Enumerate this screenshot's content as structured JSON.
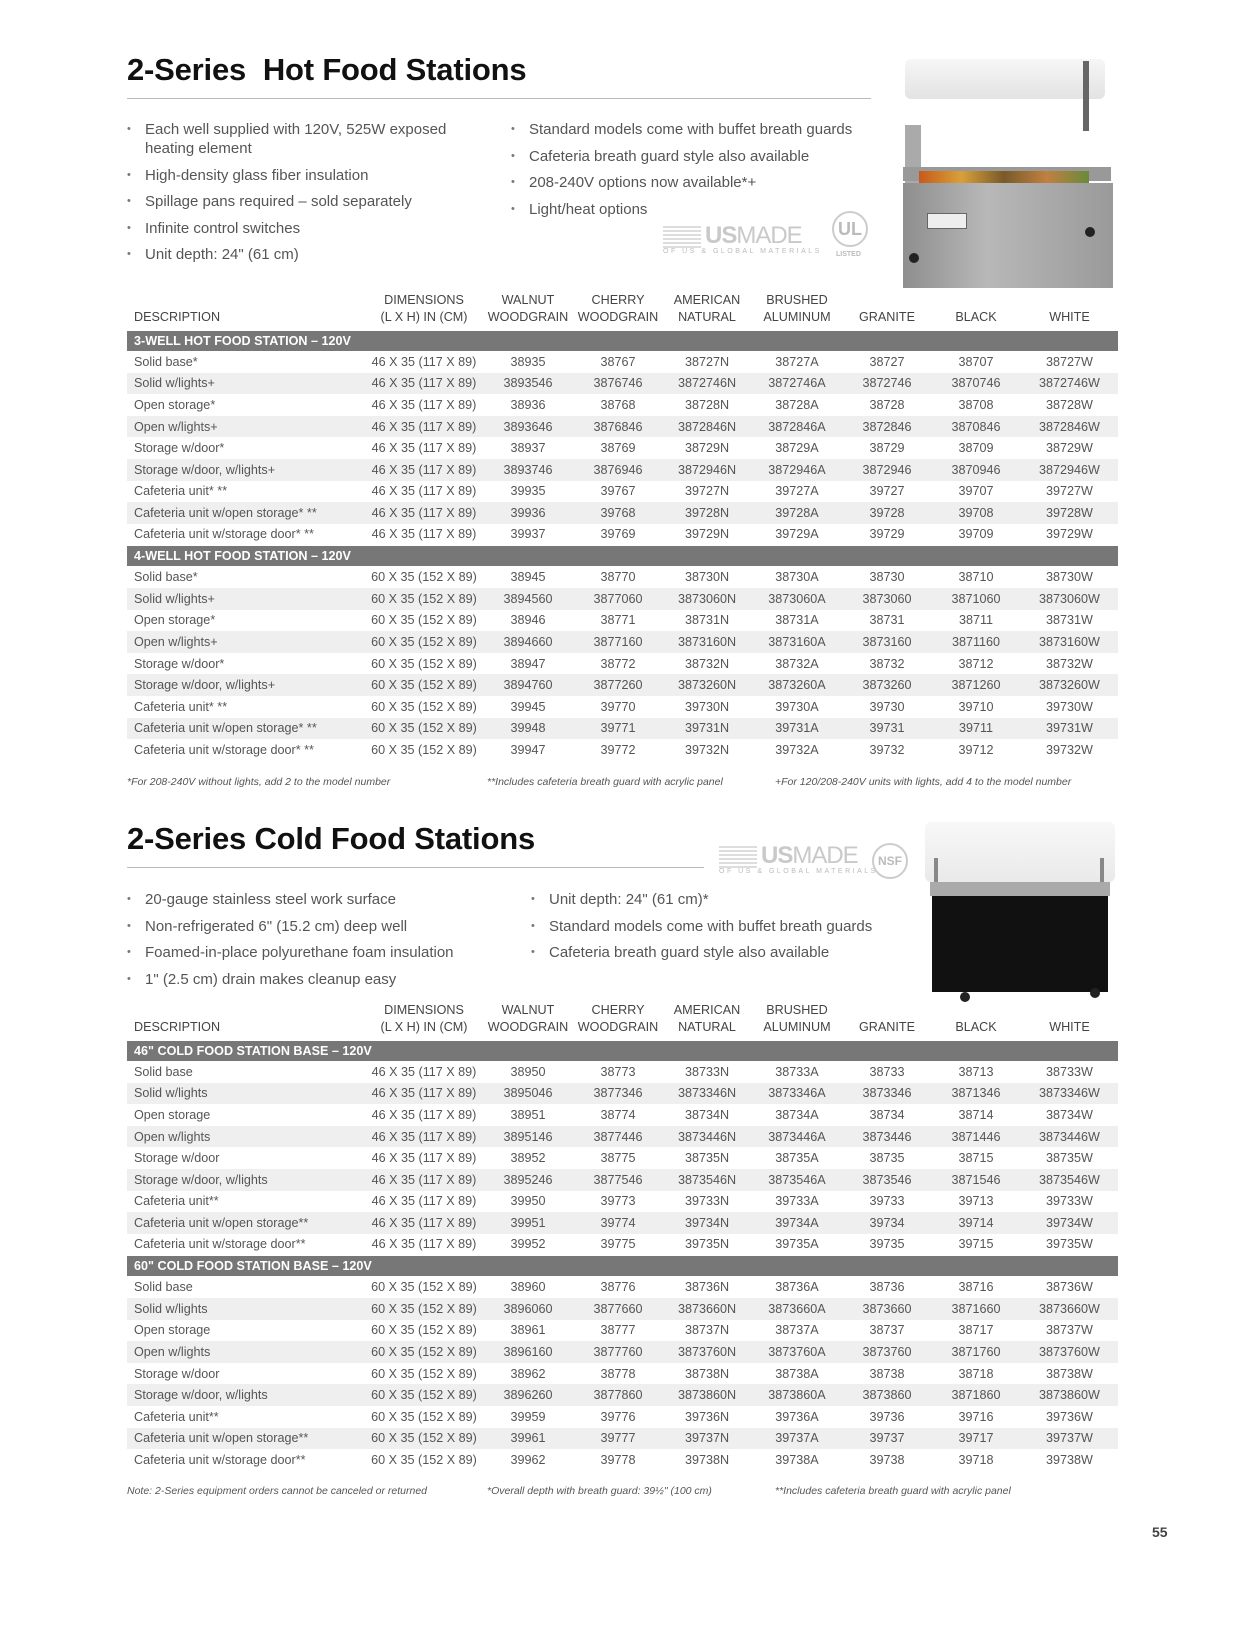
{
  "hot": {
    "title": "2-Series  Hot Food Stations",
    "bullets_left": [
      "Each well supplied with 120V, 525W exposed heating element",
      "High-density glass fiber insulation",
      "Spillage pans required – sold separately",
      "Infinite control switches",
      "Unit depth: 24\" (61 cm)"
    ],
    "bullets_right": [
      "Standard models come with buffet breath guards",
      "Cafeteria breath guard style also available",
      "208-240V options now available*+",
      "Light/heat options"
    ],
    "logos": {
      "usmade": "USMADE",
      "usmade_sub": "OF US & GLOBAL MATERIALS",
      "ul": "UL",
      "ul_c": "c",
      "ul_us": "US",
      "ul_listed": "LISTED"
    },
    "columns": [
      "DESCRIPTION",
      "DIMENSIONS\n(L X H) IN (CM)",
      "WALNUT\nWOODGRAIN",
      "CHERRY\nWOODGRAIN",
      "AMERICAN\nNATURAL",
      "BRUSHED\nALUMINUM",
      "GRANITE",
      "BLACK",
      "WHITE"
    ],
    "sections": [
      {
        "title": "3-WELL HOT FOOD STATION – 120V",
        "rows": [
          [
            "Solid base*",
            "46 X 35 (117 X 89)",
            "38935",
            "38767",
            "38727N",
            "38727A",
            "38727",
            "38707",
            "38727W"
          ],
          [
            "Solid w/lights+",
            "46 X 35 (117 X 89)",
            "3893546",
            "3876746",
            "3872746N",
            "3872746A",
            "3872746",
            "3870746",
            "3872746W"
          ],
          [
            "Open storage*",
            "46 X 35 (117 X 89)",
            "38936",
            "38768",
            "38728N",
            "38728A",
            "38728",
            "38708",
            "38728W"
          ],
          [
            "Open w/lights+",
            "46 X 35 (117 X 89)",
            "3893646",
            "3876846",
            "3872846N",
            "3872846A",
            "3872846",
            "3870846",
            "3872846W"
          ],
          [
            "Storage w/door*",
            "46 X 35 (117 X 89)",
            "38937",
            "38769",
            "38729N",
            "38729A",
            "38729",
            "38709",
            "38729W"
          ],
          [
            "Storage w/door, w/lights+",
            "46 X 35 (117 X 89)",
            "3893746",
            "3876946",
            "3872946N",
            "3872946A",
            "3872946",
            "3870946",
            "3872946W"
          ],
          [
            "Cafeteria unit* **",
            "46 X 35 (117 X 89)",
            "39935",
            "39767",
            "39727N",
            "39727A",
            "39727",
            "39707",
            "39727W"
          ],
          [
            "Cafeteria unit w/open storage* **",
            "46 X 35 (117 X 89)",
            "39936",
            "39768",
            "39728N",
            "39728A",
            "39728",
            "39708",
            "39728W"
          ],
          [
            "Cafeteria unit w/storage door* **",
            "46 X 35 (117 X 89)",
            "39937",
            "39769",
            "39729N",
            "39729A",
            "39729",
            "39709",
            "39729W"
          ]
        ]
      },
      {
        "title": "4-WELL HOT FOOD STATION – 120V",
        "rows": [
          [
            "Solid base*",
            "60 X 35 (152 X 89)",
            "38945",
            "38770",
            "38730N",
            "38730A",
            "38730",
            "38710",
            "38730W"
          ],
          [
            "Solid w/lights+",
            "60 X 35 (152 X 89)",
            "3894560",
            "3877060",
            "3873060N",
            "3873060A",
            "3873060",
            "3871060",
            "3873060W"
          ],
          [
            "Open storage*",
            "60 X 35 (152 X 89)",
            "38946",
            "38771",
            "38731N",
            "38731A",
            "38731",
            "38711",
            "38731W"
          ],
          [
            "Open w/lights+",
            "60 X 35 (152 X 89)",
            "3894660",
            "3877160",
            "3873160N",
            "3873160A",
            "3873160",
            "3871160",
            "3873160W"
          ],
          [
            "Storage w/door*",
            "60 X 35 (152 X 89)",
            "38947",
            "38772",
            "38732N",
            "38732A",
            "38732",
            "38712",
            "38732W"
          ],
          [
            "Storage w/door, w/lights+",
            "60 X 35 (152 X 89)",
            "3894760",
            "3877260",
            "3873260N",
            "3873260A",
            "3873260",
            "3871260",
            "3873260W"
          ],
          [
            "Cafeteria unit* **",
            "60 X 35 (152 X 89)",
            "39945",
            "39770",
            "39730N",
            "39730A",
            "39730",
            "39710",
            "39730W"
          ],
          [
            "Cafeteria unit w/open storage* **",
            "60 X 35 (152 X 89)",
            "39948",
            "39771",
            "39731N",
            "39731A",
            "39731",
            "39711",
            "39731W"
          ],
          [
            "Cafeteria unit w/storage door* **",
            "60 X 35 (152 X 89)",
            "39947",
            "39772",
            "39732N",
            "39732A",
            "39732",
            "39712",
            "39732W"
          ]
        ]
      }
    ],
    "footnotes": [
      "*For 208-240V without lights, add 2 to the model number",
      "**Includes cafeteria breath guard with acrylic panel",
      "+For 120/208-240V units with lights, add 4 to the model number"
    ]
  },
  "cold": {
    "title": "2-Series Cold Food Stations",
    "bullets_left": [
      "20-gauge stainless steel work surface",
      "Non-refrigerated 6\" (15.2 cm) deep well",
      "Foamed-in-place polyurethane foam insulation",
      "1\" (2.5 cm) drain makes cleanup easy"
    ],
    "bullets_right": [
      "Unit depth: 24\" (61 cm)*",
      "Standard models come with buffet breath guards",
      "Cafeteria breath guard style also available"
    ],
    "logos": {
      "usmade": "USMADE",
      "usmade_sub": "OF US & GLOBAL MATERIALS",
      "nsf": "NSF"
    },
    "columns": [
      "DESCRIPTION",
      "DIMENSIONS\n(L X H) IN (CM)",
      "WALNUT\nWOODGRAIN",
      "CHERRY\nWOODGRAIN",
      "AMERICAN\nNATURAL",
      "BRUSHED\nALUMINUM",
      "GRANITE",
      "BLACK",
      "WHITE"
    ],
    "sections": [
      {
        "title": "46\" COLD FOOD STATION BASE – 120V",
        "rows": [
          [
            "Solid base",
            "46 X 35 (117 X 89)",
            "38950",
            "38773",
            "38733N",
            "38733A",
            "38733",
            "38713",
            "38733W"
          ],
          [
            "Solid w/lights",
            "46 X 35 (117 X 89)",
            "3895046",
            "3877346",
            "3873346N",
            "3873346A",
            "3873346",
            "3871346",
            "3873346W"
          ],
          [
            "Open storage",
            "46 X 35 (117 X 89)",
            "38951",
            "38774",
            "38734N",
            "38734A",
            "38734",
            "38714",
            "38734W"
          ],
          [
            "Open w/lights",
            "46 X 35 (117 X 89)",
            "3895146",
            "3877446",
            "3873446N",
            "3873446A",
            "3873446",
            "3871446",
            "3873446W"
          ],
          [
            "Storage w/door",
            "46 X 35 (117 X 89)",
            "38952",
            "38775",
            "38735N",
            "38735A",
            "38735",
            "38715",
            "38735W"
          ],
          [
            "Storage w/door, w/lights",
            "46 X 35 (117 X 89)",
            "3895246",
            "3877546",
            "3873546N",
            "3873546A",
            "3873546",
            "3871546",
            "3873546W"
          ],
          [
            "Cafeteria unit**",
            "46 X 35 (117 X 89)",
            "39950",
            "39773",
            "39733N",
            "39733A",
            "39733",
            "39713",
            "39733W"
          ],
          [
            "Cafeteria unit w/open storage**",
            "46 X 35 (117 X 89)",
            "39951",
            "39774",
            "39734N",
            "39734A",
            "39734",
            "39714",
            "39734W"
          ],
          [
            "Cafeteria unit w/storage door**",
            "46 X 35 (117 X 89)",
            "39952",
            "39775",
            "39735N",
            "39735A",
            "39735",
            "39715",
            "39735W"
          ]
        ]
      },
      {
        "title": "60\" COLD FOOD STATION BASE – 120V",
        "rows": [
          [
            "Solid base",
            "60 X 35 (152 X 89)",
            "38960",
            "38776",
            "38736N",
            "38736A",
            "38736",
            "38716",
            "38736W"
          ],
          [
            "Solid w/lights",
            "60 X 35 (152 X 89)",
            "3896060",
            "3877660",
            "3873660N",
            "3873660A",
            "3873660",
            "3871660",
            "3873660W"
          ],
          [
            "Open storage",
            "60 X 35 (152 X 89)",
            "38961",
            "38777",
            "38737N",
            "38737A",
            "38737",
            "38717",
            "38737W"
          ],
          [
            "Open w/lights",
            "60 X 35 (152 X 89)",
            "3896160",
            "3877760",
            "3873760N",
            "3873760A",
            "3873760",
            "3871760",
            "3873760W"
          ],
          [
            "Storage w/door",
            "60 X 35 (152 X 89)",
            "38962",
            "38778",
            "38738N",
            "38738A",
            "38738",
            "38718",
            "38738W"
          ],
          [
            "Storage w/door, w/lights",
            "60 X 35 (152 X 89)",
            "3896260",
            "3877860",
            "3873860N",
            "3873860A",
            "3873860",
            "3871860",
            "3873860W"
          ],
          [
            "Cafeteria unit**",
            "60 X 35 (152 X 89)",
            "39959",
            "39776",
            "39736N",
            "39736A",
            "39736",
            "39716",
            "39736W"
          ],
          [
            "Cafeteria unit w/open storage**",
            "60 X 35 (152 X 89)",
            "39961",
            "39777",
            "39737N",
            "39737A",
            "39737",
            "39717",
            "39737W"
          ],
          [
            "Cafeteria unit w/storage door**",
            "60 X 35 (152 X 89)",
            "39962",
            "39778",
            "39738N",
            "39738A",
            "39738",
            "39718",
            "39738W"
          ]
        ]
      }
    ],
    "footnotes": [
      "Note: 2-Series equipment orders cannot be canceled or returned",
      "*Overall depth with breath guard: 39½\" (100 cm)",
      "**Includes cafeteria breath guard with acrylic panel"
    ]
  },
  "page_number": "55"
}
